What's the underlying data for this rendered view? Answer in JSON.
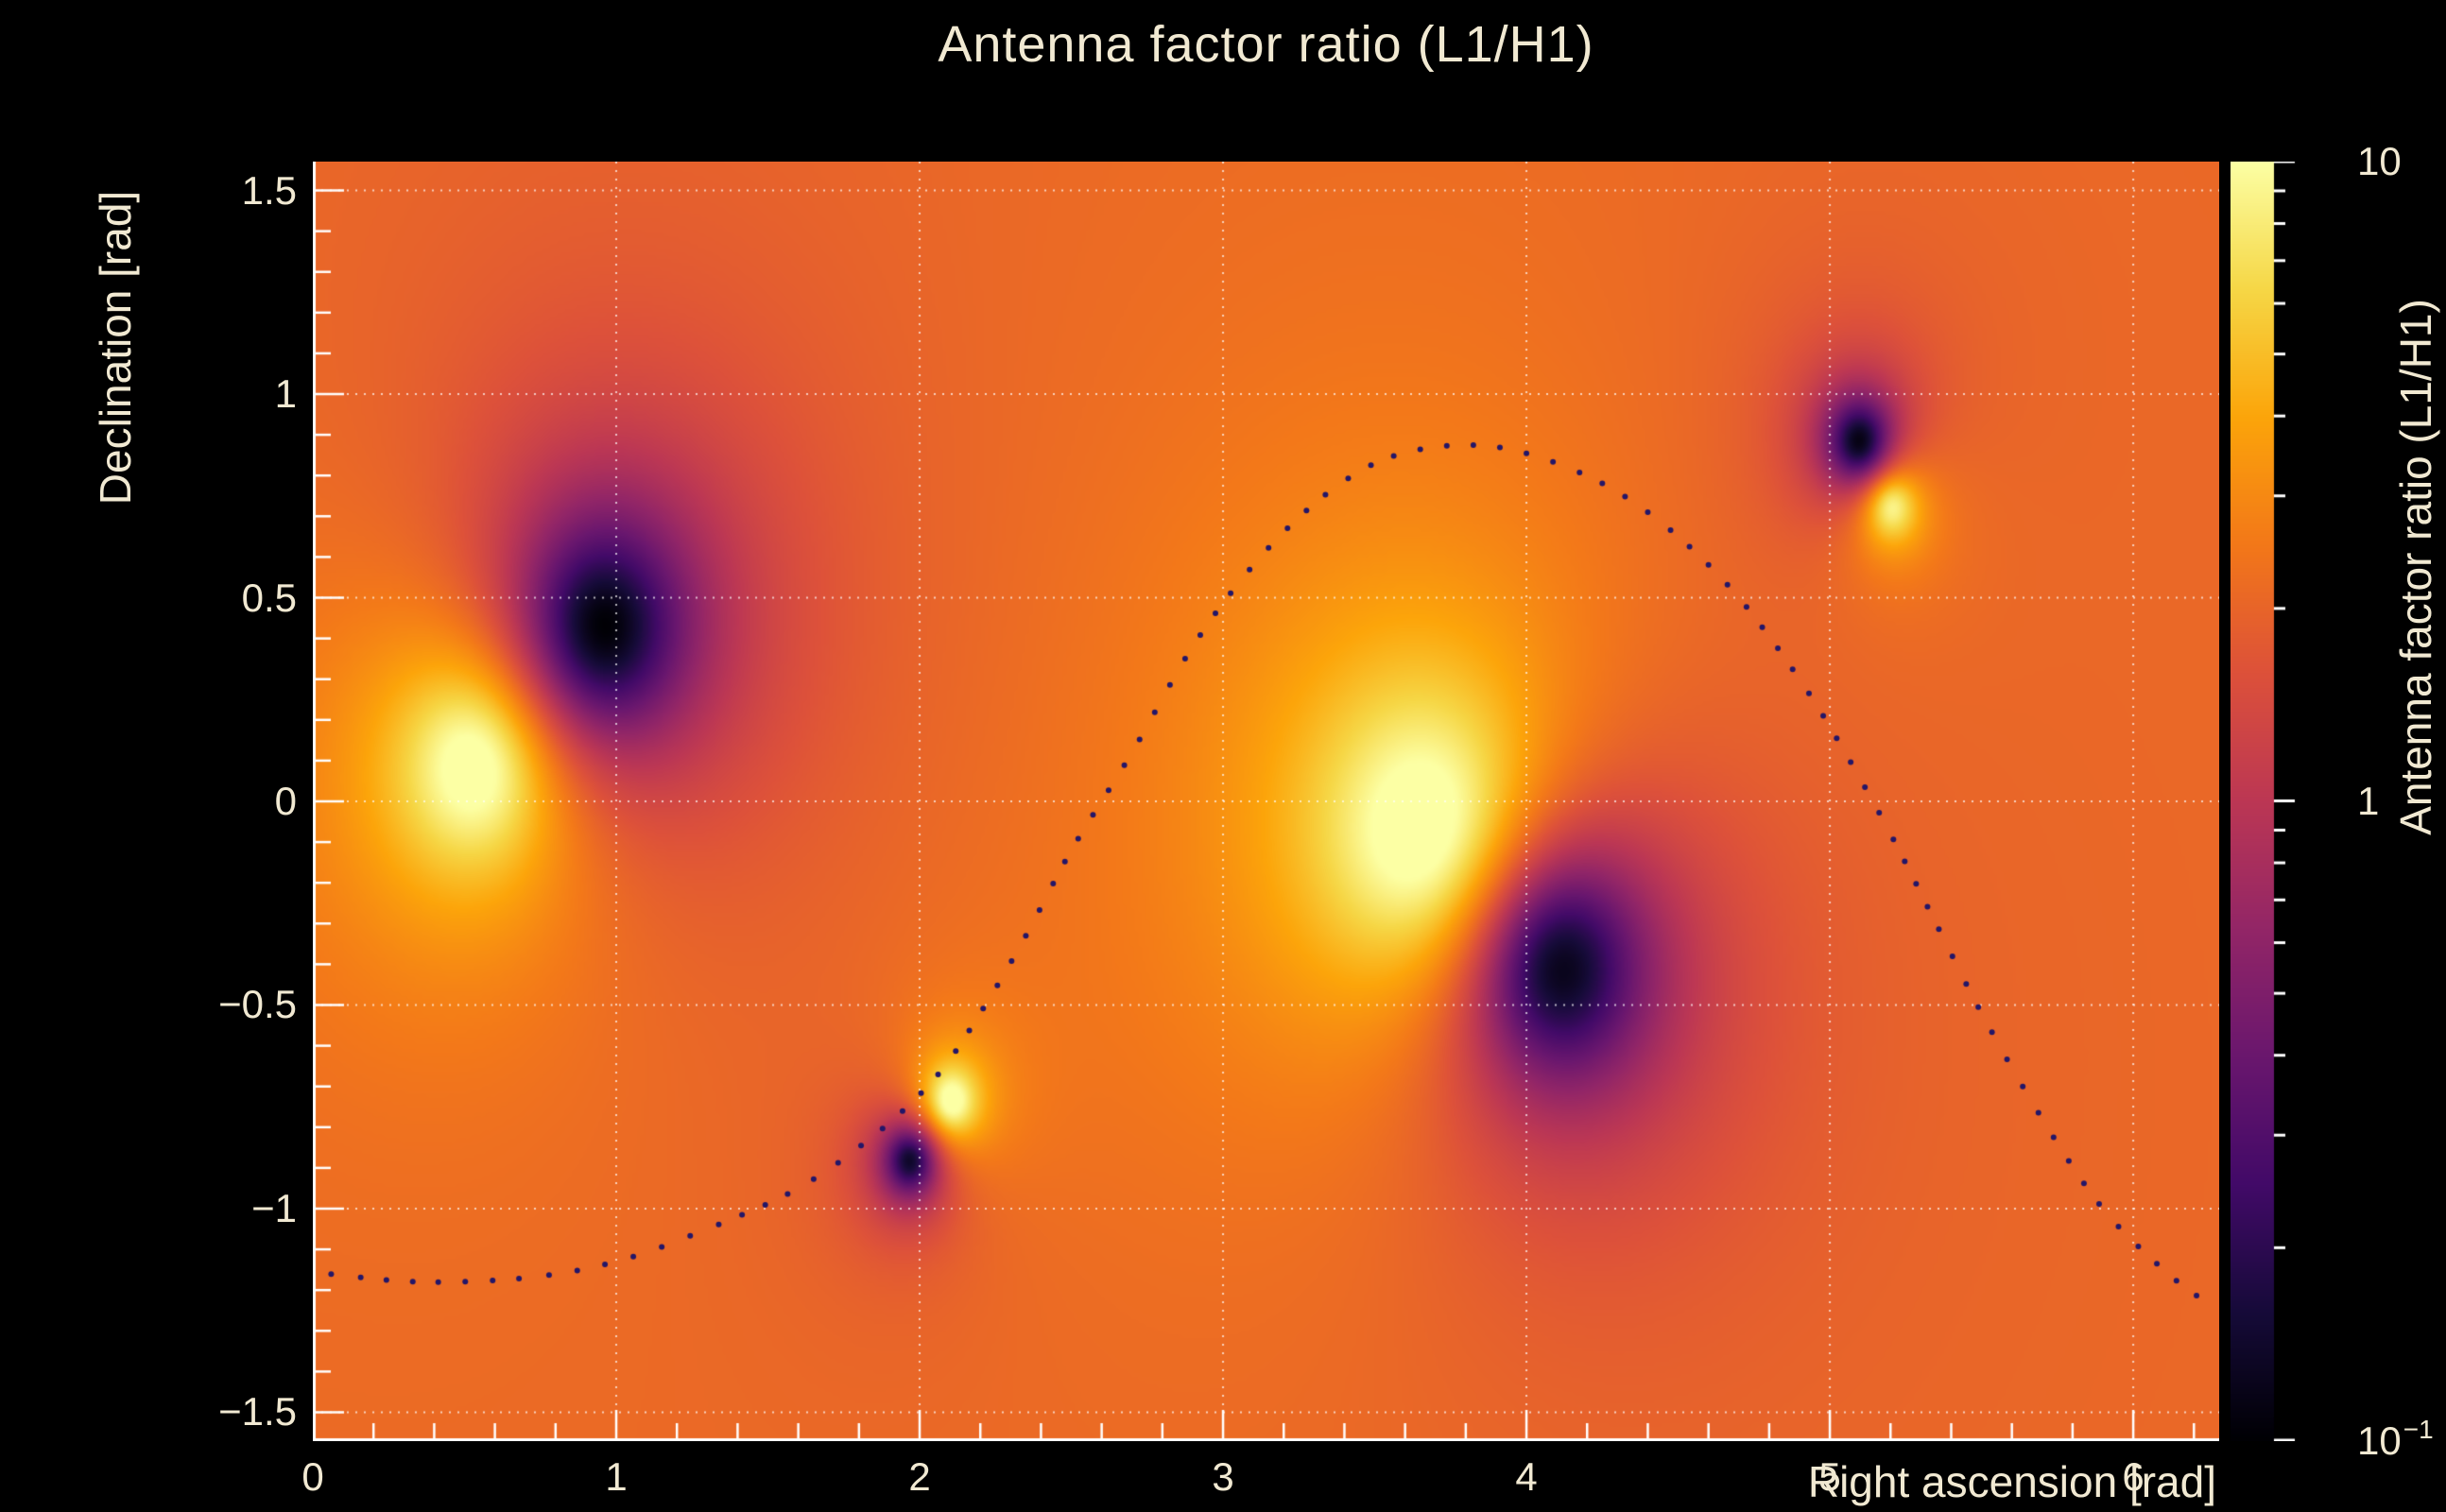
{
  "colors": {
    "background": "#000000",
    "text": "#f1e9d2",
    "axis": "#ffffff",
    "grid": "rgba(255,255,255,0.7)",
    "track_dot": "#241668"
  },
  "chart_data": {
    "type": "heatmap",
    "title": "Antenna factor ratio (L1/H1)",
    "xlabel": "Right ascension [rad]",
    "ylabel": "Declination [rad]",
    "zlabel": "Antenna factor ratio (L1/H1)",
    "x_range": [
      0,
      6.28319
    ],
    "y_range": [
      -1.5708,
      1.5708
    ],
    "z_range": [
      0.1,
      10
    ],
    "z_scale": "log",
    "colormap": "inferno",
    "grid": true,
    "x_ticks": [
      {
        "value": 0,
        "label": "0"
      },
      {
        "value": 1,
        "label": "1"
      },
      {
        "value": 2,
        "label": "2"
      },
      {
        "value": 3,
        "label": "3"
      },
      {
        "value": 4,
        "label": "4"
      },
      {
        "value": 5,
        "label": "5"
      },
      {
        "value": 6,
        "label": "6"
      }
    ],
    "y_ticks": [
      {
        "value": 1.5,
        "label": "1.5"
      },
      {
        "value": 1.0,
        "label": "1"
      },
      {
        "value": 0.5,
        "label": "0.5"
      },
      {
        "value": 0.0,
        "label": "0"
      },
      {
        "value": -0.5,
        "label": "−0.5"
      },
      {
        "value": -1.0,
        "label": "−1"
      },
      {
        "value": -1.5,
        "label": "−1.5"
      }
    ],
    "z_ticks": [
      {
        "value": 10,
        "label": "10"
      },
      {
        "value": 1,
        "label": "1"
      },
      {
        "value": 0.1,
        "label": "10",
        "sup": "−1"
      }
    ],
    "x_minor_step": 0.2,
    "y_minor_step": 0.1,
    "background_log10": 0.32,
    "features": [
      {
        "ra": 0.55,
        "dec": 0.1,
        "type": "maximum",
        "amp_log10": 1.1,
        "width_rad": 0.3
      },
      {
        "ra": 0.95,
        "dec": 0.42,
        "type": "minimum",
        "amp_log10": -1.6,
        "width_rad": 0.28
      },
      {
        "ra": 2.1,
        "dec": -0.74,
        "type": "maximum",
        "amp_log10": 1.0,
        "width_rad": 0.1
      },
      {
        "ra": 1.97,
        "dec": -0.88,
        "type": "minimum",
        "amp_log10": -1.4,
        "width_rad": 0.09
      },
      {
        "ra": 3.7,
        "dec": -0.1,
        "type": "maximum",
        "amp_log10": 1.2,
        "width_rad": 0.42
      },
      {
        "ra": 4.1,
        "dec": -0.4,
        "type": "minimum",
        "amp_log10": -1.7,
        "width_rad": 0.3
      },
      {
        "ra": 5.1,
        "dec": 0.88,
        "type": "minimum",
        "amp_log10": -1.5,
        "width_rad": 0.11
      },
      {
        "ra": 5.2,
        "dec": 0.73,
        "type": "maximum",
        "amp_log10": 1.0,
        "width_rad": 0.1
      }
    ],
    "track": {
      "style": "dotted",
      "color": "#241668",
      "points": [
        [
          0.05,
          -1.16
        ],
        [
          0.35,
          -1.18
        ],
        [
          0.7,
          -1.17
        ],
        [
          1.0,
          -1.13
        ],
        [
          1.3,
          -1.05
        ],
        [
          1.6,
          -0.95
        ],
        [
          1.85,
          -0.82
        ],
        [
          2.05,
          -0.68
        ],
        [
          2.2,
          -0.52
        ],
        [
          2.35,
          -0.33
        ],
        [
          2.5,
          -0.12
        ],
        [
          2.7,
          0.12
        ],
        [
          2.9,
          0.38
        ],
        [
          3.1,
          0.58
        ],
        [
          3.3,
          0.73
        ],
        [
          3.5,
          0.83
        ],
        [
          3.7,
          0.87
        ],
        [
          3.9,
          0.87
        ],
        [
          4.1,
          0.83
        ],
        [
          4.3,
          0.76
        ],
        [
          4.5,
          0.65
        ],
        [
          4.7,
          0.5
        ],
        [
          4.9,
          0.3
        ],
        [
          5.05,
          0.12
        ],
        [
          5.2,
          -0.08
        ],
        [
          5.35,
          -0.3
        ],
        [
          5.5,
          -0.52
        ],
        [
          5.7,
          -0.78
        ],
        [
          5.9,
          -1.0
        ],
        [
          6.1,
          -1.15
        ],
        [
          6.24,
          -1.23
        ]
      ]
    }
  }
}
